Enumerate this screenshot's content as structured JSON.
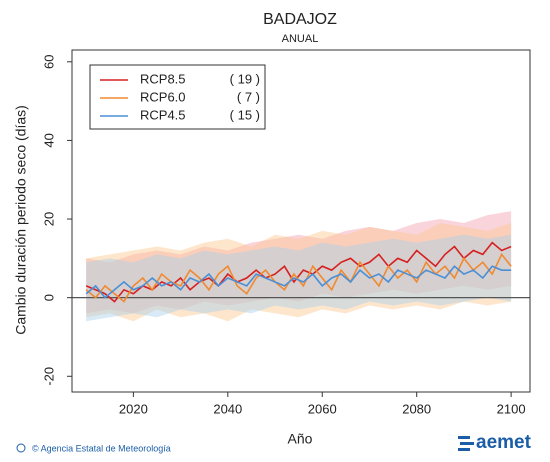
{
  "chart_data": {
    "type": "line",
    "title": "BADAJOZ",
    "subtitle": "ANUAL",
    "y_label": "Cambio duración periodo seco (días)",
    "x_label": "Año",
    "footer": "© Agencia Estatal de Meteorología",
    "logo": "aemet",
    "xlim": [
      2007,
      2104
    ],
    "ylim": [
      -24,
      63
    ],
    "xticks": [
      2020,
      2040,
      2060,
      2080,
      2100
    ],
    "yticks": [
      -20,
      0,
      20,
      40,
      60
    ],
    "x": [
      2010,
      2012,
      2014,
      2016,
      2018,
      2020,
      2022,
      2024,
      2026,
      2028,
      2030,
      2032,
      2034,
      2036,
      2038,
      2040,
      2042,
      2044,
      2046,
      2048,
      2050,
      2052,
      2054,
      2056,
      2058,
      2060,
      2062,
      2064,
      2066,
      2068,
      2070,
      2072,
      2074,
      2076,
      2078,
      2080,
      2082,
      2084,
      2086,
      2088,
      2090,
      2092,
      2094,
      2096,
      2098,
      2100
    ],
    "band_x": [
      2010,
      2015,
      2020,
      2025,
      2030,
      2035,
      2040,
      2045,
      2050,
      2055,
      2060,
      2065,
      2070,
      2075,
      2080,
      2085,
      2090,
      2095,
      2100
    ],
    "series": [
      {
        "name": "RCP8.5",
        "count_label": "( 19 )",
        "color": "#d62020",
        "band_color": "#f4a0b0",
        "values": [
          3,
          2,
          1,
          -1,
          2,
          1,
          3,
          2,
          4,
          3,
          5,
          2,
          4,
          5,
          3,
          6,
          4,
          5,
          7,
          5,
          6,
          8,
          4,
          7,
          6,
          8,
          7,
          9,
          10,
          8,
          9,
          11,
          8,
          10,
          9,
          12,
          10,
          8,
          11,
          13,
          10,
          12,
          11,
          14,
          12,
          13
        ],
        "lower": [
          -4,
          -3,
          -4,
          -2,
          -3,
          -1,
          -2,
          -1,
          0,
          -1,
          1,
          0,
          1,
          2,
          1,
          2,
          3,
          2,
          3
        ],
        "upper": [
          10,
          9,
          11,
          12,
          11,
          13,
          12,
          14,
          15,
          16,
          15,
          17,
          18,
          17,
          19,
          20,
          19,
          21,
          22
        ]
      },
      {
        "name": "RCP6.0",
        "count_label": "(   7 )",
        "color": "#f08a30",
        "band_color": "#fcc890",
        "values": [
          2,
          0,
          3,
          1,
          -1,
          3,
          5,
          2,
          6,
          4,
          3,
          7,
          5,
          2,
          6,
          8,
          3,
          1,
          5,
          7,
          4,
          2,
          6,
          3,
          8,
          5,
          2,
          7,
          4,
          9,
          6,
          3,
          8,
          5,
          7,
          4,
          9,
          6,
          8,
          5,
          10,
          7,
          9,
          6,
          11,
          8
        ],
        "lower": [
          -5,
          -4,
          -6,
          -3,
          -5,
          -4,
          -6,
          -3,
          -4,
          -5,
          -3,
          -4,
          -2,
          -3,
          -2,
          -3,
          -1,
          -2,
          -1
        ],
        "upper": [
          10,
          11,
          12,
          13,
          12,
          14,
          15,
          13,
          16,
          15,
          17,
          16,
          18,
          17,
          16,
          19,
          18,
          17,
          19
        ]
      },
      {
        "name": "RCP4.5",
        "count_label": "( 15 )",
        "color": "#4a8fd6",
        "band_color": "#a8d0ec",
        "values": [
          1,
          3,
          0,
          2,
          4,
          2,
          3,
          5,
          3,
          4,
          2,
          5,
          4,
          6,
          3,
          5,
          4,
          3,
          6,
          5,
          4,
          3,
          5,
          4,
          6,
          3,
          5,
          6,
          4,
          7,
          5,
          6,
          4,
          7,
          6,
          5,
          7,
          6,
          5,
          8,
          6,
          7,
          5,
          8,
          7,
          7
        ],
        "lower": [
          -6,
          -5,
          -4,
          -5,
          -3,
          -4,
          -3,
          -4,
          -2,
          -3,
          -2,
          -3,
          -1,
          -2,
          -1,
          -2,
          -1,
          0,
          -1
        ],
        "upper": [
          9,
          10,
          9,
          11,
          10,
          12,
          11,
          12,
          13,
          12,
          14,
          13,
          14,
          15,
          14,
          15,
          16,
          15,
          16
        ]
      }
    ]
  }
}
